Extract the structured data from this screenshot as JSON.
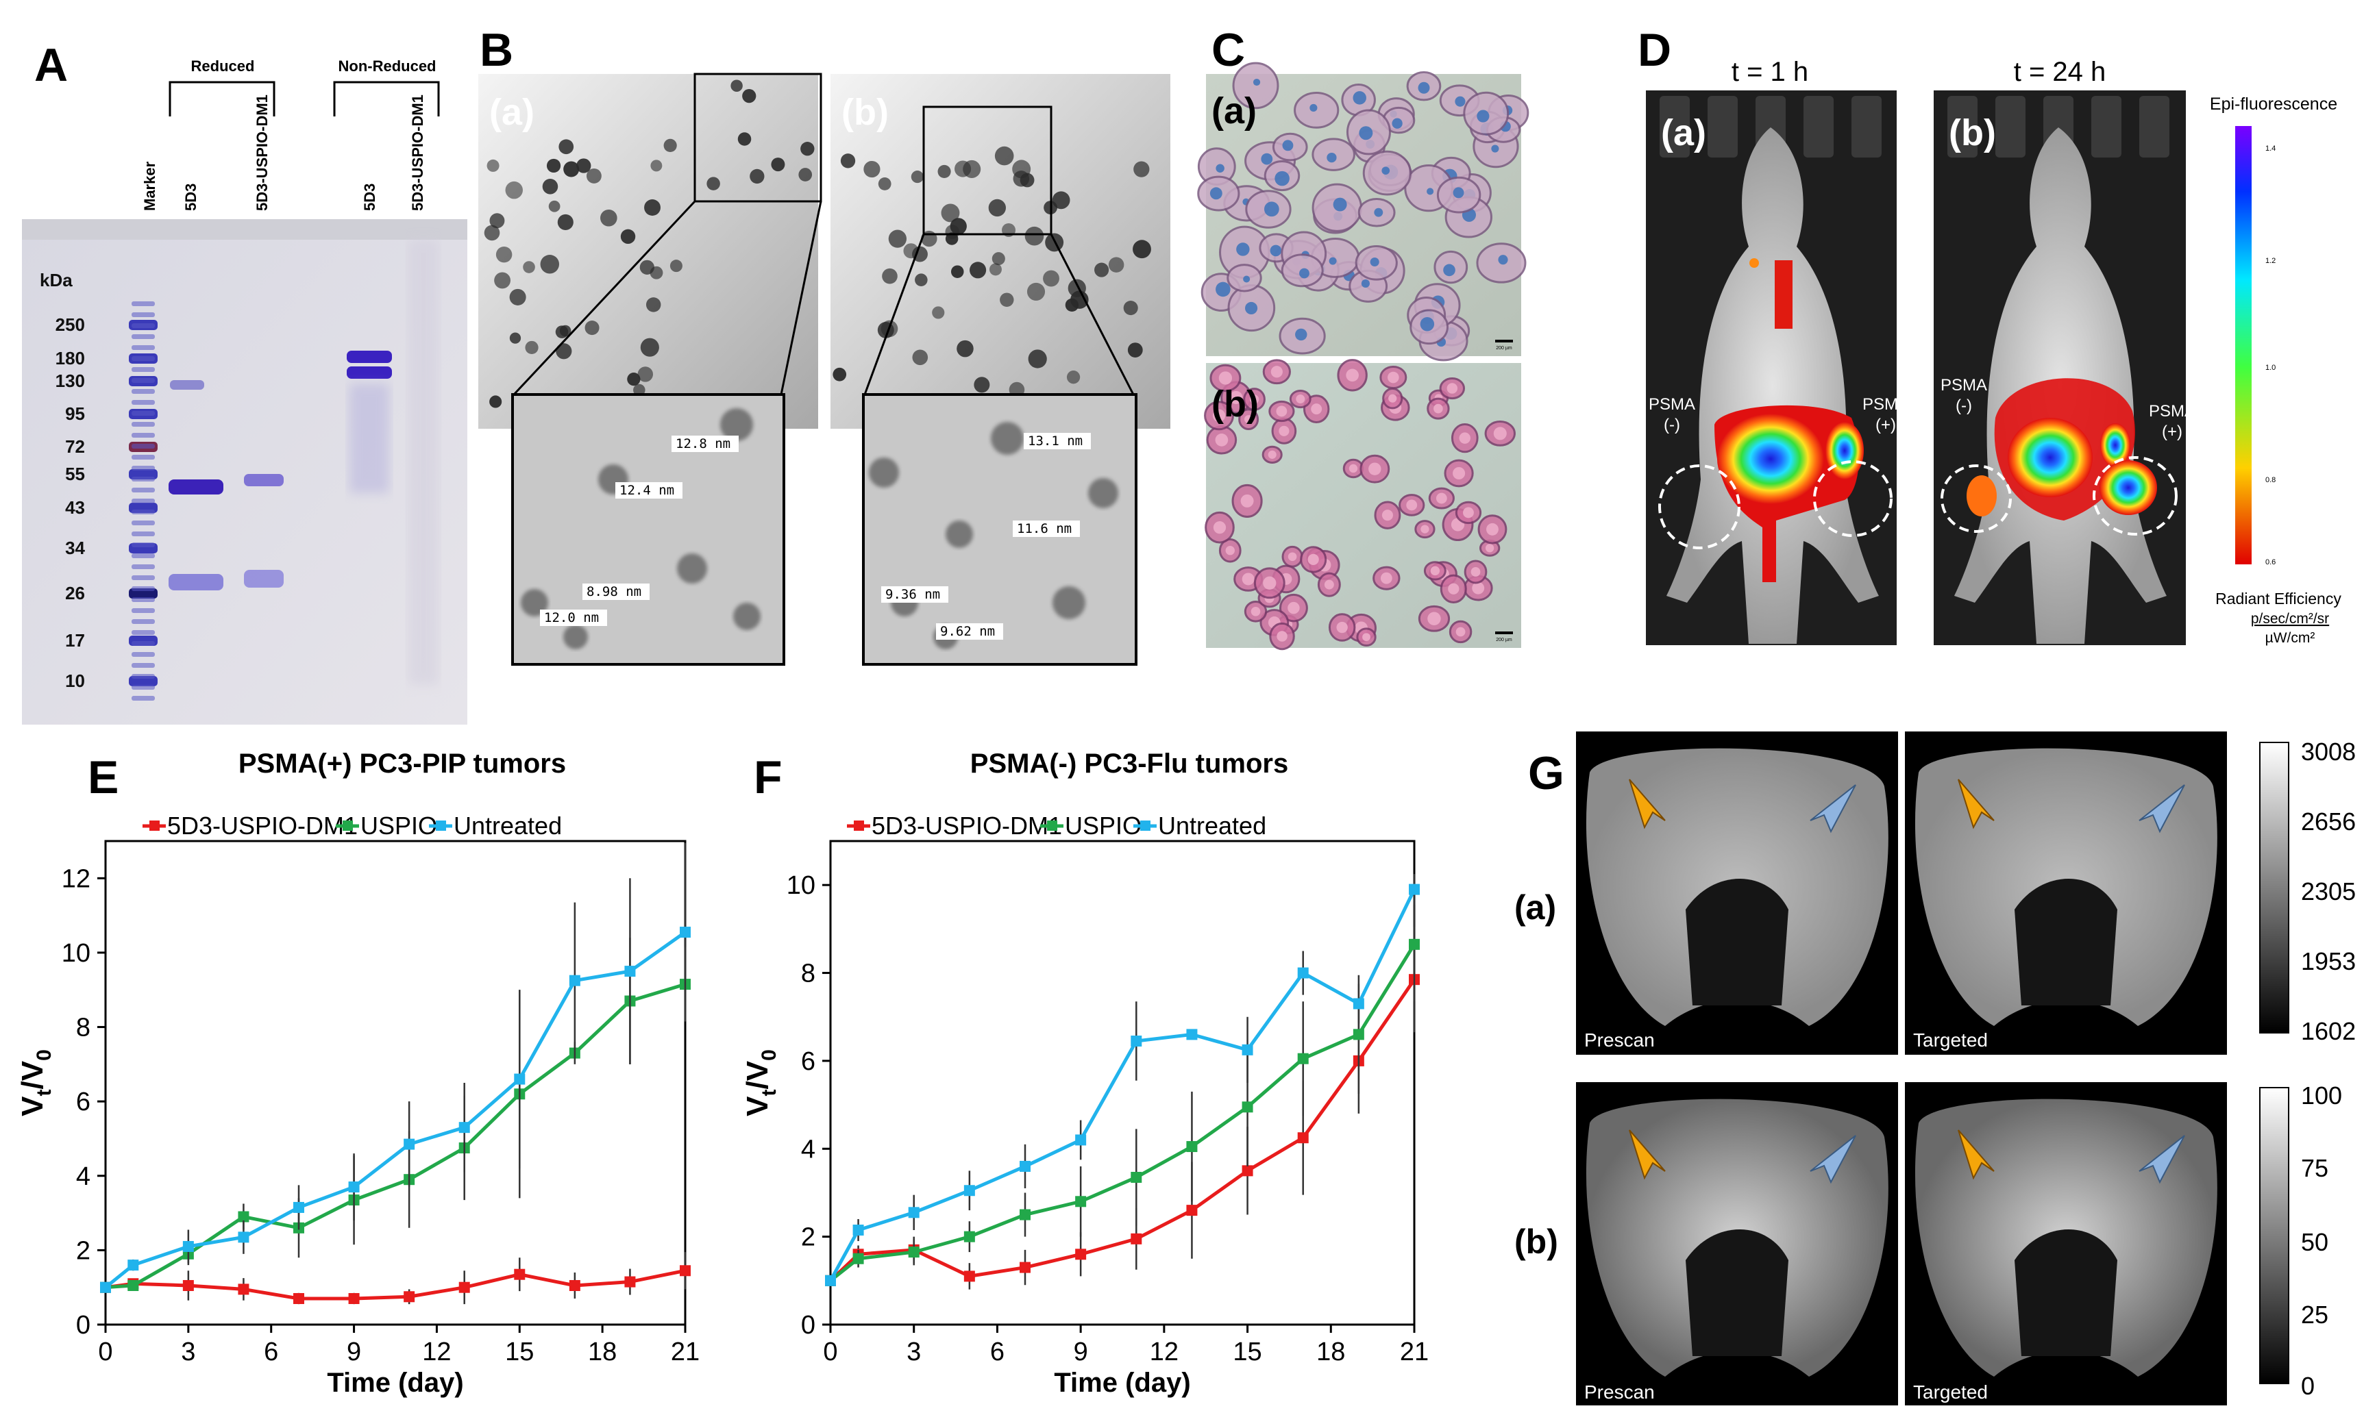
{
  "panels": {
    "A": {
      "letter": "A",
      "reduced_label": "Reduced",
      "nonreduced_label": "Non-Reduced",
      "lanes": [
        "Marker",
        "5D3",
        "5D3-USPIO-DM1",
        "5D3",
        "5D3-USPIO-DM1"
      ],
      "kda_label": "kDa",
      "kda_ticks": [
        "250",
        "180",
        "130",
        "95",
        "72",
        "55",
        "43",
        "34",
        "26",
        "17",
        "10"
      ]
    },
    "B": {
      "letter": "B",
      "sub_a": "(a)",
      "sub_b": "(b)",
      "measurements_a": [
        "12.8 nm",
        "12.4 nm",
        "8.98 nm",
        "12.0 nm"
      ],
      "measurements_b": [
        "13.1 nm",
        "11.6 nm",
        "9.36 nm",
        "9.62 nm"
      ]
    },
    "C": {
      "letter": "C",
      "sub_a": "(a)",
      "sub_b": "(b)",
      "scale_a": "200 µm",
      "scale_b": "200 µm"
    },
    "D": {
      "letter": "D",
      "t1": "t = 1 h",
      "t2": "t = 24 h",
      "sub_a": "(a)",
      "sub_b": "(b)",
      "psma_neg": "PSMA",
      "psma_neg_sign": "(-)",
      "psma_pos": "PSMA",
      "psma_pos_sign": "(+)",
      "colorbar_title": "Epi-fluorescence",
      "colorbar_ticks": [
        "1.4",
        "1.2",
        "1.0",
        "0.8",
        "0.6"
      ],
      "colorbar_units1": "Radiant Efficiency",
      "colorbar_units2": "p/sec/cm²/sr",
      "colorbar_units3": "µW/cm²",
      "colors": {
        "tumor_hot": "#1b2fd6",
        "tumor_warm": "#35e03a",
        "tumor_cool": "#e02010"
      }
    },
    "G": {
      "letter": "G",
      "row_a": "(a)",
      "row_b": "(b)",
      "prescan": "Prescan",
      "targeted": "Targeted",
      "colorbar_a": [
        "3008",
        "2656",
        "2305",
        "1953",
        "1602"
      ],
      "colorbar_b": [
        "100",
        "75",
        "50",
        "25",
        "0"
      ],
      "colors": {
        "arrow_orange": "#f5a60a",
        "arrow_blue": "#8fb4e0"
      }
    }
  },
  "chart_data": [
    {
      "type": "line",
      "panel_letter": "E",
      "title": "PSMA(+) PC3-PIP tumors",
      "xlabel": "Time (day)",
      "ylabel": "V",
      "ylabel_sub1": "t",
      "ylabel_mid": "/V",
      "ylabel_sub2": "0",
      "xlim": [
        0,
        21
      ],
      "ylim": [
        0,
        13
      ],
      "xticks": [
        0,
        3,
        6,
        9,
        12,
        15,
        18,
        21
      ],
      "yticks": [
        0,
        2,
        4,
        6,
        8,
        10,
        12
      ],
      "series": [
        {
          "name": "5D3-USPIO-DM1",
          "color": "#e81c1c",
          "x": [
            0,
            1,
            3,
            5,
            7,
            9,
            11,
            13,
            15,
            17,
            19,
            21
          ],
          "y": [
            1.0,
            1.1,
            1.05,
            0.95,
            0.7,
            0.7,
            0.75,
            1.0,
            1.35,
            1.05,
            1.15,
            1.45
          ],
          "err": [
            0,
            0.1,
            0.4,
            0.3,
            0.15,
            0.15,
            0.2,
            0.45,
            0.45,
            0.35,
            0.35,
            0.5
          ]
        },
        {
          "name": "USPIO",
          "color": "#22a84a",
          "x": [
            0,
            1,
            3,
            5,
            7,
            9,
            11,
            13,
            15,
            17,
            19,
            21
          ],
          "y": [
            1.0,
            1.05,
            1.9,
            2.9,
            2.6,
            3.35,
            3.9,
            4.75,
            6.2,
            7.3,
            8.7,
            9.15
          ],
          "err": [
            0,
            0.1,
            0.3,
            0.35,
            0.8,
            1.2,
            1.3,
            1.4,
            2.8,
            0.3,
            1.7,
            1.0
          ]
        },
        {
          "name": "Untreated",
          "color": "#21b3ec",
          "x": [
            0,
            1,
            3,
            5,
            7,
            9,
            11,
            13,
            15,
            17,
            19,
            21
          ],
          "y": [
            1.0,
            1.6,
            2.1,
            2.35,
            3.15,
            3.7,
            4.85,
            5.3,
            6.6,
            9.25,
            9.5,
            10.55
          ],
          "err": [
            0,
            0.15,
            0.45,
            0.45,
            0.6,
            0.9,
            1.15,
            1.2,
            2.4,
            2.1,
            2.5,
            2.4
          ]
        }
      ]
    },
    {
      "type": "line",
      "panel_letter": "F",
      "title": "PSMA(-) PC3-Flu tumors",
      "xlabel": "Time (day)",
      "ylabel": "V",
      "ylabel_sub1": "t",
      "ylabel_mid": "/V",
      "ylabel_sub2": "0",
      "xlim": [
        0,
        21
      ],
      "ylim": [
        0,
        11
      ],
      "xticks": [
        0,
        3,
        6,
        9,
        12,
        15,
        18,
        21
      ],
      "yticks": [
        0,
        2,
        4,
        6,
        8,
        10
      ],
      "series": [
        {
          "name": "5D3-USPIO-DM1",
          "color": "#e81c1c",
          "x": [
            0,
            1,
            3,
            5,
            7,
            9,
            11,
            13,
            15,
            17,
            19,
            21
          ],
          "y": [
            1.0,
            1.6,
            1.7,
            1.1,
            1.3,
            1.6,
            1.95,
            2.6,
            3.5,
            4.25,
            6.0,
            7.85
          ],
          "err": [
            0,
            0.2,
            0.3,
            0.3,
            0.4,
            0.5,
            0.7,
            1.1,
            1.0,
            1.3,
            1.2,
            1.2
          ]
        },
        {
          "name": "USPIO",
          "color": "#22a84a",
          "x": [
            0,
            1,
            3,
            5,
            7,
            9,
            11,
            13,
            15,
            17,
            19,
            21
          ],
          "y": [
            1.0,
            1.5,
            1.65,
            2.0,
            2.5,
            2.8,
            3.35,
            4.05,
            4.95,
            6.05,
            6.6,
            8.65
          ],
          "err": [
            0,
            0.2,
            0.3,
            0.35,
            0.5,
            0.8,
            1.1,
            1.25,
            1.35,
            1.3,
            1.35,
            1.3
          ]
        },
        {
          "name": "Untreated",
          "color": "#21b3ec",
          "x": [
            0,
            1,
            3,
            5,
            7,
            9,
            11,
            13,
            15,
            17,
            19,
            21
          ],
          "y": [
            1.0,
            2.15,
            2.55,
            3.05,
            3.6,
            4.2,
            6.45,
            6.6,
            6.25,
            8.0,
            7.3,
            9.9
          ],
          "err": [
            0,
            0.25,
            0.4,
            0.45,
            0.5,
            0.45,
            0.9,
            0.05,
            0.75,
            0.5,
            0.45,
            0.35
          ]
        }
      ]
    }
  ]
}
